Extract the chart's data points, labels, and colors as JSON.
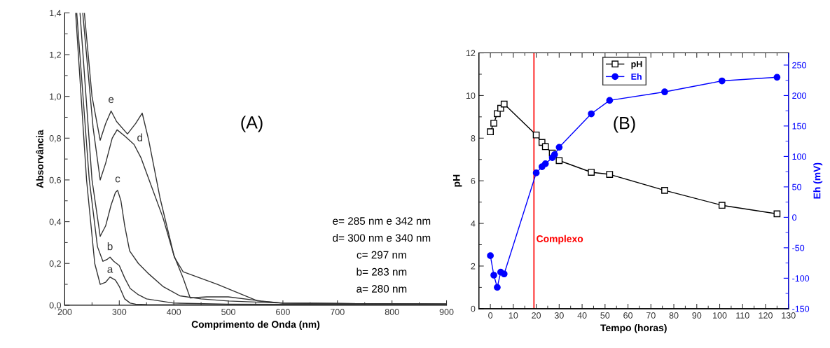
{
  "chart_data": [
    {
      "type": "line",
      "xlabel": "Comprimento de Onda (nm)",
      "ylabel": "Absorvância",
      "xlim": [
        200,
        900
      ],
      "xticks": [
        200,
        300,
        400,
        500,
        600,
        700,
        800,
        900
      ],
      "ylim": [
        0,
        1.4
      ],
      "yticks": [
        {
          "value": 0,
          "label": "0,0"
        },
        {
          "value": 0.2,
          "label": "0,2"
        },
        {
          "value": 0.4,
          "label": "0,4"
        },
        {
          "value": 0.6,
          "label": "0,6"
        },
        {
          "value": 0.8,
          "label": "0,8"
        },
        {
          "value": 1.0,
          "label": "1,0"
        },
        {
          "value": 1.2,
          "label": "1,2"
        },
        {
          "value": 1.4,
          "label": "1,4"
        }
      ],
      "grid": false,
      "marker": "none",
      "line_style": "solid",
      "series": [
        {
          "name": "a",
          "color": "#333333",
          "x": [
            220,
            240,
            255,
            265,
            275,
            283,
            293,
            300,
            310,
            320,
            330,
            350,
            400,
            500,
            600,
            700,
            900
          ],
          "values": [
            1.4,
            0.6,
            0.2,
            0.1,
            0.11,
            0.135,
            0.12,
            0.09,
            0.03,
            0.01,
            0.005,
            0.003,
            0.002,
            0.002,
            0.002,
            0.002,
            0.002
          ]
        },
        {
          "name": "b",
          "color": "#333333",
          "x": [
            222,
            245,
            260,
            270,
            278,
            283,
            290,
            300,
            310,
            320,
            335,
            350,
            400,
            500,
            600,
            700,
            900
          ],
          "values": [
            1.4,
            0.6,
            0.28,
            0.21,
            0.22,
            0.23,
            0.21,
            0.19,
            0.13,
            0.08,
            0.05,
            0.03,
            0.01,
            0.005,
            0.004,
            0.004,
            0.004
          ]
        },
        {
          "name": "c",
          "color": "#333333",
          "x": [
            228,
            250,
            265,
            275,
            285,
            293,
            297,
            303,
            310,
            319,
            335,
            354,
            380,
            411,
            450,
            500,
            600,
            700,
            900
          ],
          "values": [
            1.4,
            0.6,
            0.33,
            0.38,
            0.48,
            0.54,
            0.55,
            0.5,
            0.38,
            0.26,
            0.2,
            0.15,
            0.09,
            0.045,
            0.03,
            0.02,
            0.01,
            0.008,
            0.006
          ]
        },
        {
          "name": "d",
          "color": "#333333",
          "x": [
            233,
            252,
            265,
            275,
            287,
            296,
            310,
            327,
            340,
            354,
            380,
            400,
            417,
            430,
            460,
            500,
            560,
            600,
            700,
            900
          ],
          "values": [
            1.4,
            0.85,
            0.6,
            0.68,
            0.8,
            0.84,
            0.81,
            0.77,
            0.705,
            0.605,
            0.42,
            0.24,
            0.13,
            0.035,
            0.04,
            0.04,
            0.02,
            0.01,
            0.008,
            0.006
          ]
        },
        {
          "name": "e",
          "color": "#333333",
          "x": [
            236,
            250,
            265,
            275,
            285,
            295,
            315,
            330,
            342,
            354,
            375,
            401,
            417,
            480,
            554,
            600,
            700,
            900
          ],
          "values": [
            1.4,
            1.0,
            0.79,
            0.87,
            0.93,
            0.88,
            0.82,
            0.87,
            0.92,
            0.79,
            0.51,
            0.23,
            0.16,
            0.1,
            0.02,
            0.01,
            0.008,
            0.006
          ]
        }
      ],
      "annotations": [
        "(A)",
        "e= 285 nm e 342 nm",
        "d= 300 nm e 340 nm",
        "c= 297 nm",
        "b= 283 nm",
        "a= 280 nm"
      ]
    },
    {
      "type": "line",
      "xlabel": "Tempo (horas)",
      "ylabel": "pH",
      "y2label": "Eh (mV)",
      "xlim": [
        -5,
        130
      ],
      "xticks": [
        0,
        10,
        20,
        30,
        40,
        50,
        60,
        70,
        80,
        90,
        100,
        110,
        120,
        130
      ],
      "ylim": [
        0,
        12
      ],
      "yticks": [
        0,
        2,
        4,
        6,
        8,
        10,
        12
      ],
      "y2lim": [
        -150,
        270
      ],
      "y2ticks": [
        -150,
        -100,
        -50,
        0,
        50,
        100,
        150,
        200,
        250
      ],
      "grid": false,
      "legend": "top",
      "line_style": "solid",
      "series": [
        {
          "name": "pH",
          "color": "#000000",
          "marker": "square",
          "x": [
            0,
            1.5,
            3,
            4.5,
            6,
            20,
            22.5,
            24,
            27,
            30,
            44,
            52,
            76,
            101,
            125
          ],
          "values": [
            8.3,
            8.7,
            9.15,
            9.4,
            9.6,
            8.15,
            7.8,
            7.6,
            7.3,
            6.95,
            6.4,
            6.3,
            5.55,
            4.85,
            4.45
          ]
        },
        {
          "name": "Eh",
          "color": "#0000ff",
          "marker": "circle",
          "axis": "y2",
          "x": [
            0,
            1.5,
            3,
            4.5,
            6,
            20,
            22.5,
            24,
            27,
            28,
            30,
            44,
            52,
            76,
            101,
            125
          ],
          "values": [
            -63,
            -95,
            -115,
            -90,
            -93,
            73,
            83,
            88,
            98,
            103,
            115,
            170,
            192,
            206,
            224,
            230
          ]
        }
      ],
      "ref_lines": [
        {
          "axis": "x",
          "value": 19,
          "label": "Complexo",
          "color": "#ff0000"
        }
      ],
      "annotations": [
        "(B)"
      ]
    }
  ]
}
